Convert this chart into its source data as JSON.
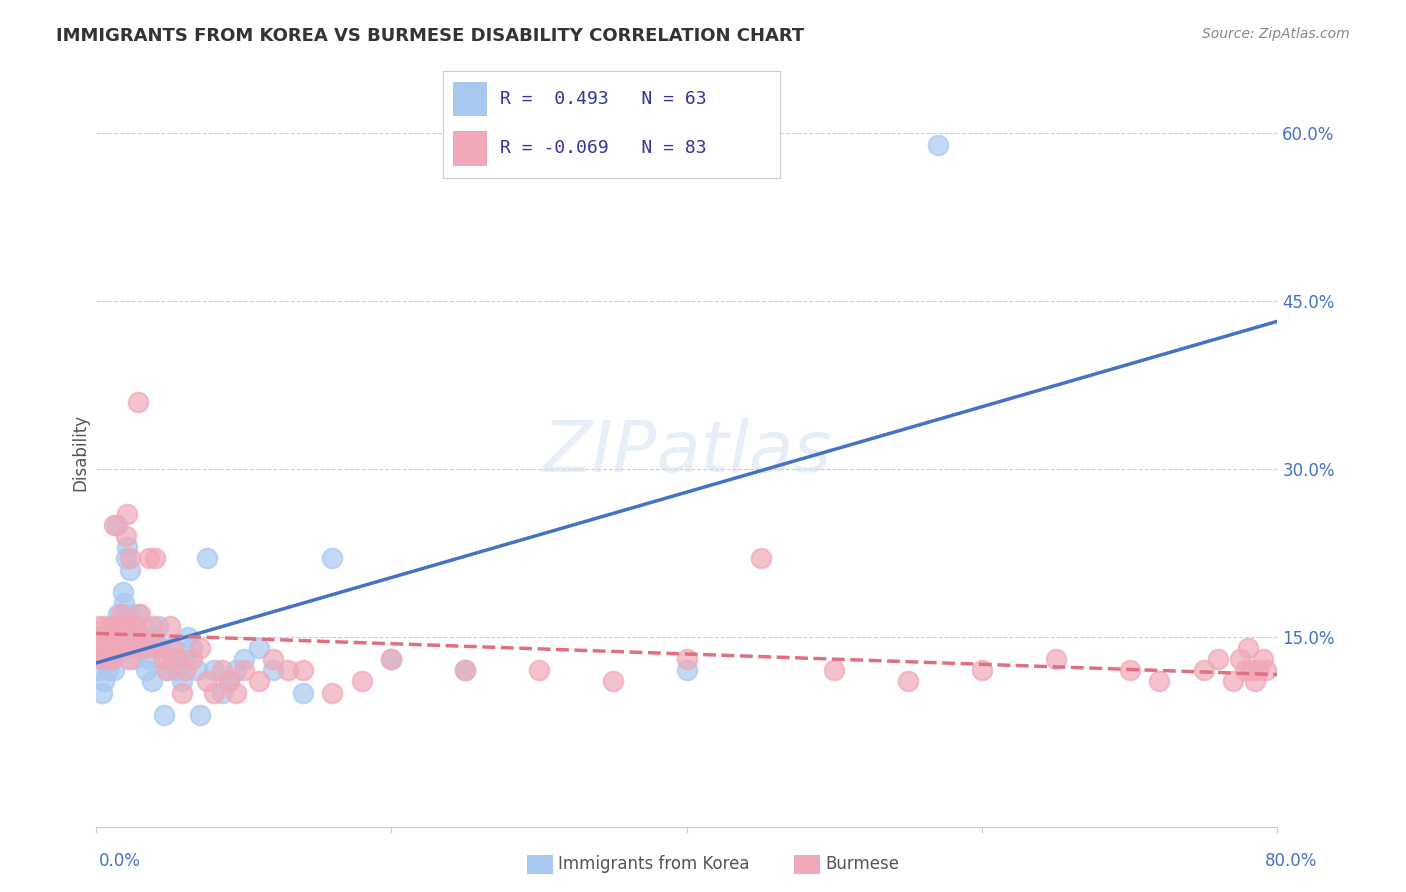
{
  "title": "IMMIGRANTS FROM KOREA VS BURMESE DISABILITY CORRELATION CHART",
  "source": "Source: ZipAtlas.com",
  "ylabel": "Disability",
  "ytick_labels": [
    "15.0%",
    "30.0%",
    "45.0%",
    "60.0%"
  ],
  "ytick_values": [
    0.15,
    0.3,
    0.45,
    0.6
  ],
  "xlim": [
    0.0,
    0.8
  ],
  "ylim": [
    -0.02,
    0.65
  ],
  "legend_korea_r": "R =  0.493",
  "legend_korea_n": "N = 63",
  "legend_burmese_r": "R = -0.069",
  "legend_burmese_n": "N = 83",
  "korea_color": "#a8c8f0",
  "burmese_color": "#f0a8b8",
  "korea_line_color": "#4472c4",
  "burmese_line_color": "#e07080",
  "background_color": "#ffffff",
  "korea_scatter_x": [
    0.002,
    0.004,
    0.005,
    0.005,
    0.006,
    0.007,
    0.008,
    0.008,
    0.009,
    0.01,
    0.01,
    0.011,
    0.012,
    0.012,
    0.013,
    0.013,
    0.014,
    0.015,
    0.015,
    0.016,
    0.017,
    0.018,
    0.019,
    0.02,
    0.021,
    0.022,
    0.023,
    0.025,
    0.026,
    0.028,
    0.03,
    0.032,
    0.034,
    0.036,
    0.038,
    0.04,
    0.042,
    0.044,
    0.046,
    0.048,
    0.05,
    0.052,
    0.055,
    0.058,
    0.06,
    0.062,
    0.065,
    0.068,
    0.07,
    0.075,
    0.08,
    0.085,
    0.09,
    0.095,
    0.1,
    0.11,
    0.12,
    0.14,
    0.16,
    0.2,
    0.25,
    0.4,
    0.57
  ],
  "korea_scatter_y": [
    0.12,
    0.1,
    0.14,
    0.11,
    0.13,
    0.14,
    0.15,
    0.12,
    0.13,
    0.16,
    0.14,
    0.13,
    0.15,
    0.12,
    0.14,
    0.16,
    0.25,
    0.17,
    0.15,
    0.14,
    0.16,
    0.19,
    0.18,
    0.22,
    0.23,
    0.17,
    0.21,
    0.13,
    0.16,
    0.17,
    0.14,
    0.15,
    0.12,
    0.13,
    0.11,
    0.15,
    0.16,
    0.14,
    0.08,
    0.12,
    0.14,
    0.13,
    0.12,
    0.11,
    0.13,
    0.15,
    0.14,
    0.12,
    0.08,
    0.22,
    0.12,
    0.1,
    0.11,
    0.12,
    0.13,
    0.14,
    0.12,
    0.1,
    0.22,
    0.13,
    0.12,
    0.12,
    0.59
  ],
  "burmese_scatter_x": [
    0.001,
    0.002,
    0.003,
    0.004,
    0.005,
    0.005,
    0.006,
    0.007,
    0.008,
    0.009,
    0.01,
    0.01,
    0.011,
    0.012,
    0.012,
    0.013,
    0.014,
    0.015,
    0.015,
    0.016,
    0.017,
    0.018,
    0.019,
    0.02,
    0.021,
    0.022,
    0.023,
    0.024,
    0.025,
    0.026,
    0.027,
    0.028,
    0.03,
    0.032,
    0.034,
    0.036,
    0.038,
    0.04,
    0.042,
    0.045,
    0.048,
    0.05,
    0.052,
    0.055,
    0.058,
    0.06,
    0.065,
    0.07,
    0.075,
    0.08,
    0.085,
    0.09,
    0.095,
    0.1,
    0.11,
    0.12,
    0.13,
    0.14,
    0.16,
    0.18,
    0.2,
    0.25,
    0.3,
    0.35,
    0.4,
    0.45,
    0.5,
    0.55,
    0.6,
    0.65,
    0.7,
    0.72,
    0.75,
    0.76,
    0.77,
    0.775,
    0.778,
    0.78,
    0.782,
    0.785,
    0.787,
    0.79,
    0.792
  ],
  "burmese_scatter_y": [
    0.14,
    0.16,
    0.15,
    0.13,
    0.14,
    0.15,
    0.16,
    0.13,
    0.14,
    0.15,
    0.15,
    0.14,
    0.13,
    0.25,
    0.14,
    0.16,
    0.15,
    0.14,
    0.16,
    0.15,
    0.17,
    0.14,
    0.16,
    0.24,
    0.26,
    0.13,
    0.22,
    0.16,
    0.15,
    0.14,
    0.16,
    0.36,
    0.17,
    0.15,
    0.14,
    0.22,
    0.16,
    0.22,
    0.14,
    0.13,
    0.12,
    0.16,
    0.14,
    0.13,
    0.1,
    0.12,
    0.13,
    0.14,
    0.11,
    0.1,
    0.12,
    0.11,
    0.1,
    0.12,
    0.11,
    0.13,
    0.12,
    0.12,
    0.1,
    0.11,
    0.13,
    0.12,
    0.12,
    0.11,
    0.13,
    0.22,
    0.12,
    0.11,
    0.12,
    0.13,
    0.12,
    0.11,
    0.12,
    0.13,
    0.11,
    0.13,
    0.12,
    0.14,
    0.12,
    0.11,
    0.12,
    0.13,
    0.12
  ]
}
